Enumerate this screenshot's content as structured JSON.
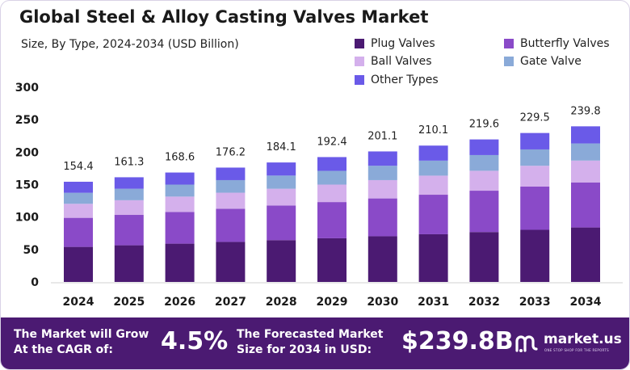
{
  "title": "Global Steel & Alloy Casting Valves Market",
  "subtitle": "Size, By Type, 2024-2034 (USD Billion)",
  "colors": {
    "plug": "#4b1a72",
    "butterfly": "#8a4ac8",
    "ball": "#d4b0ec",
    "gate": "#8aaad8",
    "other": "#6a5ae8",
    "footer": "#4b1a72"
  },
  "chart_data": {
    "type": "bar",
    "stacked": true,
    "title": "Global Steel & Alloy Casting Valves Market",
    "subtitle": "Size, By Type, 2024-2034 (USD Billion)",
    "xlabel": "",
    "ylabel": "",
    "ylim": [
      0,
      300
    ],
    "yticks": [
      "0",
      "50",
      "100",
      "150",
      "200",
      "250",
      "300"
    ],
    "categories": [
      "2024",
      "2025",
      "2026",
      "2027",
      "2028",
      "2029",
      "2030",
      "2031",
      "2032",
      "2033",
      "2034"
    ],
    "totals": [
      "154.4",
      "161.3",
      "168.6",
      "176.2",
      "184.1",
      "192.4",
      "201.1",
      "210.1",
      "219.6",
      "229.5",
      "239.8"
    ],
    "series": [
      {
        "name": "Plug Valves",
        "key": "plug",
        "values": [
          54.0,
          56.5,
          59.0,
          61.7,
          64.4,
          67.3,
          70.4,
          73.5,
          76.9,
          80.3,
          83.9
        ]
      },
      {
        "name": "Butterfly Valves",
        "key": "butterfly",
        "values": [
          44.8,
          46.8,
          48.9,
          51.1,
          53.4,
          55.8,
          58.3,
          60.9,
          63.7,
          66.6,
          69.5
        ]
      },
      {
        "name": "Ball Valves",
        "key": "ball",
        "values": [
          21.6,
          22.6,
          23.6,
          24.7,
          25.8,
          26.9,
          28.2,
          29.4,
          30.7,
          32.1,
          33.6
        ]
      },
      {
        "name": "Gate Valve",
        "key": "gate",
        "values": [
          17.0,
          17.7,
          18.5,
          19.4,
          20.3,
          21.2,
          22.1,
          23.1,
          24.2,
          25.2,
          26.4
        ]
      },
      {
        "name": "Other Types",
        "key": "other",
        "values": [
          17.0,
          17.7,
          18.6,
          19.3,
          20.2,
          21.2,
          22.1,
          23.2,
          24.1,
          25.3,
          26.4
        ]
      }
    ],
    "legend_position": "top-right",
    "grid": false
  },
  "footer": {
    "cagr_label": "The Market will Grow\nAt the CAGR of:",
    "cagr_value": "4.5%",
    "forecast_label": "The Forecasted Market\nSize for 2034 in USD:",
    "forecast_value": "$239.8B",
    "brand": "market.us",
    "brand_tagline": "ONE STOP SHOP FOR THE REPORTS",
    "logo_icon": "market-us-logo-icon"
  }
}
